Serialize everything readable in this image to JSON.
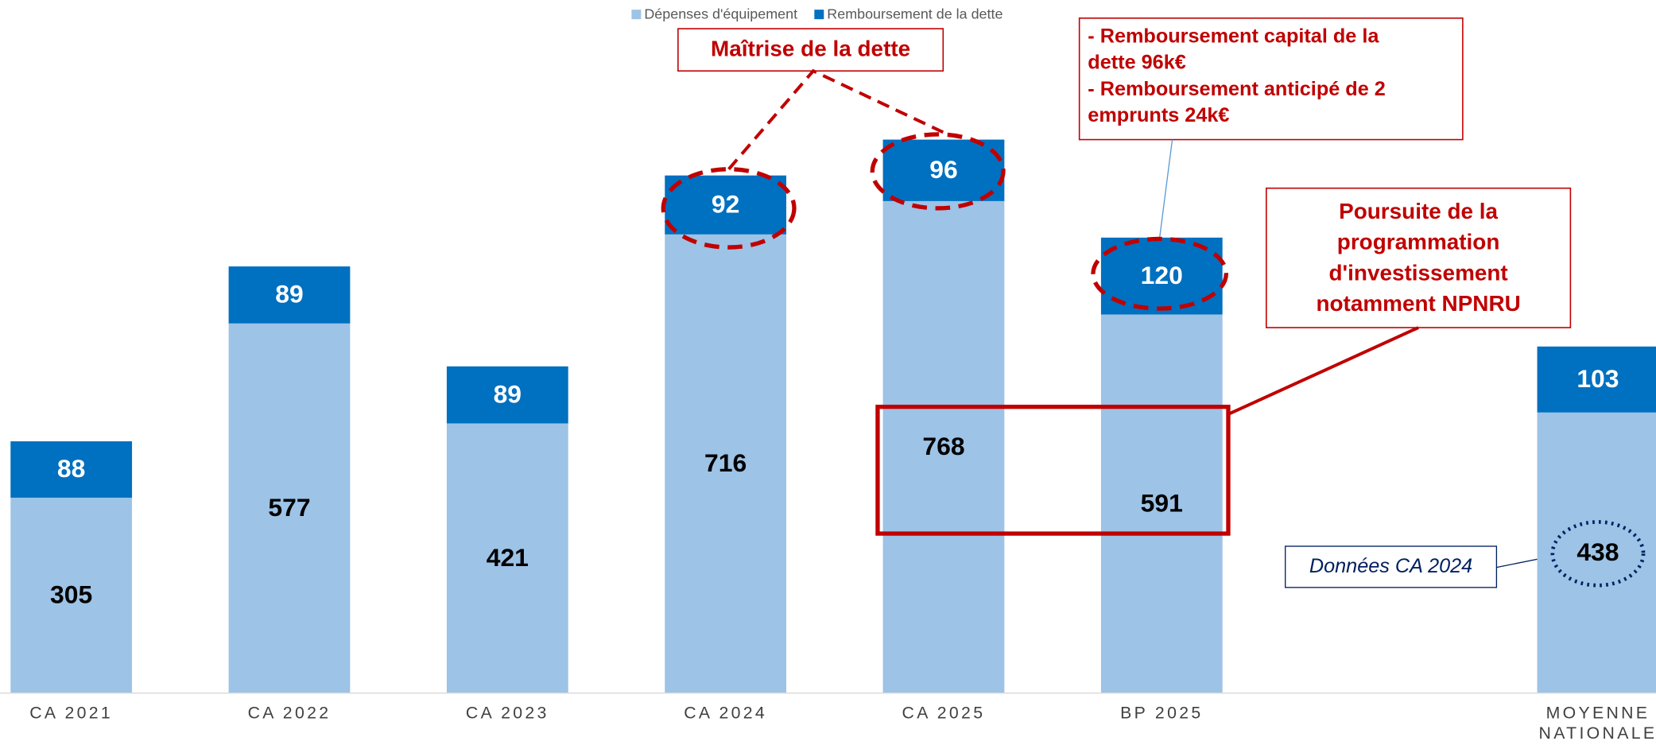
{
  "chart_data": {
    "type": "stacked-bar",
    "categories": [
      "CA 2021",
      "CA 2022",
      "CA 2023",
      "CA 2024",
      "CA 2025",
      "BP 2025",
      null,
      "MOYENNE NATIONALE"
    ],
    "series": [
      {
        "name": "Dépenses d'équipement",
        "color": "#9DC3E6",
        "values": [
          305,
          577,
          421,
          716,
          768,
          591,
          null,
          438
        ]
      },
      {
        "name": "Remboursement de la dette",
        "color": "#0070C0",
        "values": [
          88,
          89,
          89,
          92,
          96,
          120,
          null,
          103
        ]
      }
    ],
    "legend": "top",
    "annotations": [
      "Maîtrise de la dette",
      "- Remboursement capital de la dette 96k€",
      "- Remboursement anticipé de 2 emprunts 24k€",
      "Poursuite  de la programmation d'investissement notamment NPNRU",
      "Données CA 2024"
    ]
  }
}
